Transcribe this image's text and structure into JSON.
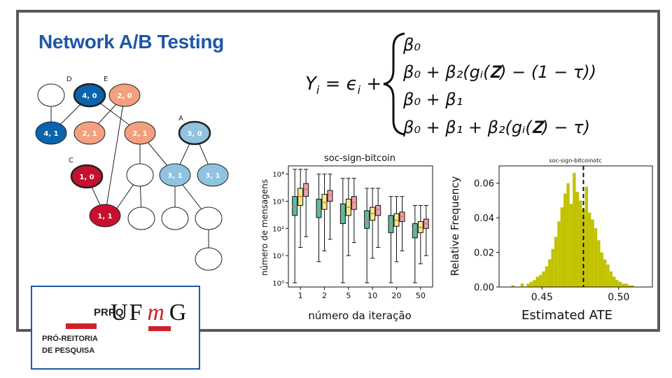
{
  "title": "Network A/B Testing",
  "graph": {
    "labels": [
      "D",
      "E",
      "A",
      "C"
    ],
    "nodes": [
      {
        "label": "",
        "color": "#ffffff"
      },
      {
        "label": "4, 0",
        "color": "#0a63ad"
      },
      {
        "label": "2, 0",
        "color": "#f2a07e"
      },
      {
        "label": "4, 1",
        "color": "#0a63ad"
      },
      {
        "label": "2, 1",
        "color": "#f2a07e"
      },
      {
        "label": "2, 1",
        "color": "#f2a07e"
      },
      {
        "label": "3, 0",
        "color": "#8fc3e0"
      },
      {
        "label": "1, 0",
        "color": "#c8102e"
      },
      {
        "label": "3, 1",
        "color": "#8fc3e0"
      },
      {
        "label": "3, 1",
        "color": "#8fc3e0"
      },
      {
        "label": "1, 1",
        "color": "#c8102e"
      }
    ]
  },
  "equation": {
    "lhs": "Y",
    "lhs_sub": "i",
    "eq": " = ",
    "eps": "ϵ",
    "eps_sub": "i",
    "plus": " + ",
    "cases": [
      "β₀",
      "β₀ + β₂(gᵢ(𝐙) − (1 − τ))",
      "β₀ + β₁",
      "β₀ + β₁ + β₂(gᵢ(𝐙) − τ)"
    ]
  },
  "chart_data": [
    {
      "type": "box",
      "title": "soc-sign-bitcoin",
      "xlabel": "número da iteração",
      "ylabel": "número de mensagens",
      "yscale": "log",
      "ylim": [
        0.7,
        20000
      ],
      "yticks": [
        "10⁰",
        "10¹",
        "10²",
        "10³",
        "10⁴"
      ],
      "categories": [
        "1",
        "2",
        "5",
        "10",
        "20",
        "50"
      ],
      "series_colors": [
        "#5fb8a8",
        "#f5e98a",
        "#e8a0b8"
      ],
      "groups": [
        [
          {
            "min": 1,
            "q1": 300,
            "med": 600,
            "q3": 1500,
            "max": 15000
          },
          {
            "min": 20,
            "q1": 700,
            "med": 1500,
            "q3": 3000,
            "max": 15000
          },
          {
            "min": 50,
            "q1": 1500,
            "med": 2800,
            "q3": 4500,
            "max": 15000
          }
        ],
        [
          {
            "min": 6,
            "q1": 250,
            "med": 500,
            "q3": 1200,
            "max": 10000
          },
          {
            "min": 15,
            "q1": 500,
            "med": 900,
            "q3": 1800,
            "max": 10000
          },
          {
            "min": 40,
            "q1": 1000,
            "med": 1700,
            "q3": 2500,
            "max": 10000
          }
        ],
        [
          {
            "min": 1,
            "q1": 150,
            "med": 350,
            "q3": 800,
            "max": 7000
          },
          {
            "min": 10,
            "q1": 300,
            "med": 600,
            "q3": 1200,
            "max": 7000
          },
          {
            "min": 30,
            "q1": 500,
            "med": 900,
            "q3": 1500,
            "max": 7000
          }
        ],
        [
          {
            "min": 1,
            "q1": 100,
            "med": 200,
            "q3": 450,
            "max": 3000
          },
          {
            "min": 8,
            "q1": 200,
            "med": 350,
            "q3": 600,
            "max": 3000
          },
          {
            "min": 20,
            "q1": 300,
            "med": 500,
            "q3": 700,
            "max": 3000
          }
        ],
        [
          {
            "min": 1,
            "q1": 70,
            "med": 150,
            "q3": 300,
            "max": 1500
          },
          {
            "min": 6,
            "q1": 120,
            "med": 200,
            "q3": 350,
            "max": 1500
          },
          {
            "min": 15,
            "q1": 180,
            "med": 280,
            "q3": 400,
            "max": 1500
          }
        ],
        [
          {
            "min": 1,
            "q1": 45,
            "med": 90,
            "q3": 150,
            "max": 700
          },
          {
            "min": 5,
            "q1": 70,
            "med": 110,
            "q3": 180,
            "max": 700
          },
          {
            "min": 10,
            "q1": 100,
            "med": 150,
            "q3": 220,
            "max": 700
          }
        ]
      ]
    },
    {
      "type": "histogram",
      "title": "soc-sign-bitcoinotc",
      "xlabel": "Estimated ATE",
      "ylabel": "Relative Frequency",
      "xlim": [
        0.422,
        0.522
      ],
      "ylim": [
        0,
        0.07
      ],
      "xticks": [
        "0.45",
        "0.50"
      ],
      "yticks": [
        "0.00",
        "0.02",
        "0.04",
        "0.06"
      ],
      "bar_color": "#c2c200",
      "bin_start": 0.43,
      "bin_width": 0.002,
      "values": [
        0.001,
        0.0,
        0.0,
        0.002,
        0.0,
        0.002,
        0.003,
        0.004,
        0.006,
        0.007,
        0.009,
        0.012,
        0.016,
        0.022,
        0.029,
        0.038,
        0.046,
        0.054,
        0.06,
        0.048,
        0.066,
        0.055,
        0.05,
        0.045,
        0.058,
        0.043,
        0.039,
        0.034,
        0.027,
        0.02,
        0.016,
        0.013,
        0.009,
        0.006,
        0.004,
        0.003,
        0.002,
        0.002,
        0.001,
        0.001
      ],
      "mean_line": 0.477
    }
  ],
  "logo": {
    "prpq": "PRPQ",
    "pro_line1": "PRÓ-REITORIA",
    "pro_line2": "DE PESQUISA",
    "uf": "UF",
    "m": "m",
    "g": "G"
  }
}
